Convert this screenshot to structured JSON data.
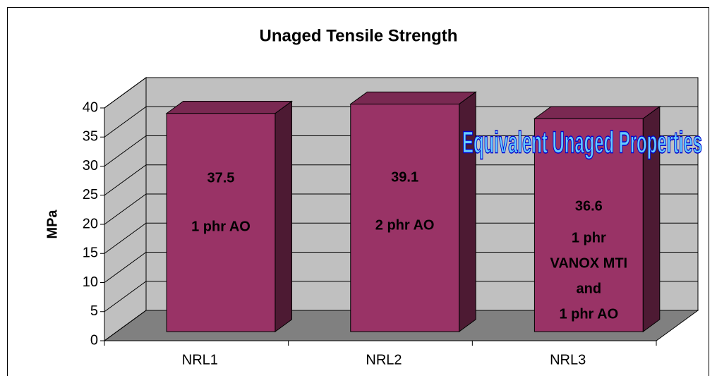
{
  "chart_data": {
    "type": "bar3d",
    "title": "Unaged Tensile Strength",
    "y_label": "MPa",
    "categories": [
      "NRL1",
      "NRL2",
      "NRL3"
    ],
    "values": [
      37.5,
      39.1,
      36.6
    ],
    "color": "#993366",
    "bar_notes": [
      [
        "1 phr AO"
      ],
      [
        "2 phr AO"
      ],
      [
        "1 phr",
        "VANOX MTI",
        "and",
        "1 phr AO"
      ]
    ],
    "wordart": "Equivalent Unaged Properties",
    "ylim": [
      0,
      40
    ],
    "yticks": [
      0,
      5,
      10,
      15,
      20,
      25,
      30,
      35,
      40
    ],
    "grid": true
  }
}
